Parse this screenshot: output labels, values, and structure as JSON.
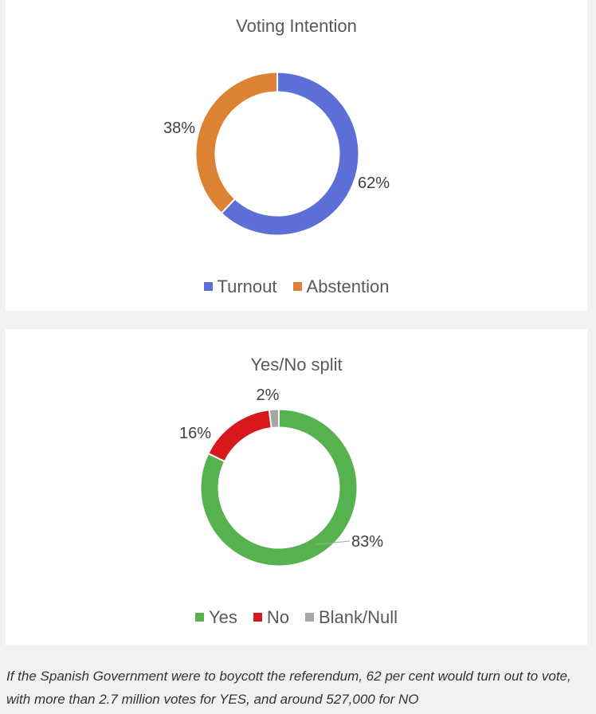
{
  "chart_data": [
    {
      "type": "pie",
      "donut": true,
      "title": "Voting Intention",
      "categories": [
        "Turnout",
        "Abstention"
      ],
      "values": [
        62,
        38
      ],
      "labels": [
        "62%",
        "38%"
      ],
      "colors": [
        "#5b6fd6",
        "#dd8232"
      ],
      "legend": "bottom"
    },
    {
      "type": "pie",
      "donut": true,
      "title": "Yes/No split",
      "categories": [
        "Yes",
        "No",
        "Blank/Null"
      ],
      "values": [
        83,
        16,
        2
      ],
      "labels": [
        "83%",
        "16%",
        "2%"
      ],
      "colors": [
        "#56b14f",
        "#d7191f",
        "#a6a6a6"
      ],
      "legend": "bottom"
    }
  ],
  "caption": "If the Spanish Government were to boycott the referendum, 62 per cent would turn out to vote, with more than 2.7 million votes for YES, and around 527,000 for NO"
}
